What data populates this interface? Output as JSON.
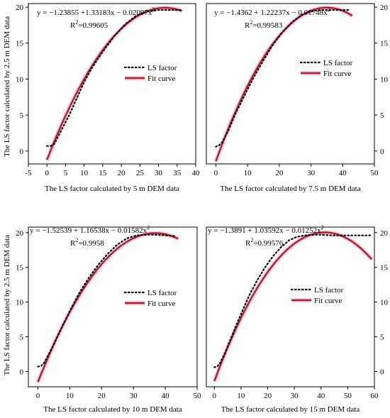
{
  "figure": {
    "ylabel_left_top": "The LS factor calculated by 2.5 m DEM data",
    "ylabel_left_bottom": "The LS factor calculated by 2.5 m DEM data"
  },
  "colors": {
    "fit": "#a0281e",
    "ls": "#000000",
    "halo": "#ff77e0"
  },
  "chart_data": [
    {
      "type": "line",
      "xlabel": "The LS factor calculated by 5 m DEM data",
      "xlim": [
        -5,
        40
      ],
      "ylim": [
        -1.8,
        20.5
      ],
      "xticks": [
        -5,
        0,
        5,
        10,
        15,
        20,
        25,
        30,
        35,
        40
      ],
      "yticks": [
        0,
        5,
        10,
        15,
        20
      ],
      "yaxis_side": "left",
      "equation": "y = −1.23855 +1.33183x − 0.02097x",
      "equation_exp": "2",
      "r2_prefix": "R",
      "r2_exp": "2",
      "r2_value": "=0.99605",
      "legend": [
        "LS factor",
        "Fit curve"
      ],
      "legend_position": "center-right",
      "series": [
        {
          "name": "LS factor",
          "style": "dotted",
          "x": [
            0,
            1,
            2,
            4,
            6,
            8,
            10,
            12,
            15,
            18,
            21,
            24,
            27,
            30,
            33,
            36
          ],
          "y": [
            0.7,
            0.7,
            1.0,
            3.0,
            5.0,
            7.3,
            9.6,
            11.5,
            13.8,
            15.9,
            17.6,
            18.8,
            19.4,
            19.6,
            19.6,
            19.6
          ]
        },
        {
          "name": "Fit curve",
          "style": "solid",
          "fit": [
            -1.23855,
            1.33183,
            -0.02097
          ],
          "x_range": [
            0,
            36.3
          ]
        }
      ]
    },
    {
      "type": "line",
      "xlabel": "The LS factor calculated by 7.5 m DEM data",
      "xlim": [
        -3,
        50
      ],
      "ylim": [
        -1.8,
        20.5
      ],
      "xticks": [
        0,
        10,
        20,
        30,
        40,
        50
      ],
      "yticks": [
        0,
        5,
        10,
        15,
        20
      ],
      "yaxis_side": "right",
      "equation": "y = −1.4362 + 1.22237x − 0.01748x",
      "equation_exp": "2",
      "r2_prefix": "R",
      "r2_exp": "2",
      "r2_value": "=0.99583",
      "legend": [
        "LS factor",
        "Fit curve"
      ],
      "legend_position": "center-right",
      "series": [
        {
          "name": "LS factor",
          "style": "dotted",
          "x": [
            0,
            1,
            2,
            4,
            6,
            9,
            12,
            15,
            18,
            21,
            24,
            27,
            30,
            33,
            36,
            39,
            42
          ],
          "y": [
            0.6,
            0.8,
            1.2,
            2.9,
            5.0,
            7.7,
            10.3,
            12.6,
            14.8,
            16.5,
            17.9,
            18.9,
            19.4,
            19.6,
            19.6,
            19.6,
            19.6
          ]
        },
        {
          "name": "Fit curve",
          "style": "solid",
          "fit": [
            -1.4362,
            1.22237,
            -0.01748
          ],
          "x_range": [
            0,
            43
          ]
        }
      ]
    },
    {
      "type": "line",
      "xlabel": "The LS factor calculated by 10 m DEM data",
      "xlim": [
        -3,
        50
      ],
      "ylim": [
        -2.2,
        20.8
      ],
      "xticks": [
        0,
        10,
        20,
        30,
        40,
        50
      ],
      "yticks": [
        0,
        5,
        10,
        15,
        20
      ],
      "yaxis_side": "left",
      "equation": "y = −1.52539 + 1.16538x − 0.01582x",
      "equation_exp": "2",
      "r2_prefix": "R",
      "r2_exp": "2",
      "r2_value": "=0.9958",
      "legend": [
        "LS factor",
        "Fit curve"
      ],
      "legend_position": "top-right",
      "series": [
        {
          "name": "LS factor",
          "style": "dotted",
          "x": [
            0,
            1,
            2,
            4,
            7,
            10,
            13,
            16,
            19,
            22,
            25,
            28,
            31,
            34,
            37,
            40,
            43
          ],
          "y": [
            0.7,
            0.8,
            1.3,
            3.0,
            5.9,
            8.7,
            11.3,
            13.5,
            15.4,
            17.0,
            18.3,
            19.2,
            19.6,
            19.7,
            19.7,
            19.6,
            19.5
          ]
        },
        {
          "name": "Fit curve",
          "style": "solid",
          "fit": [
            -1.52539,
            1.16538,
            -0.01582
          ],
          "x_range": [
            0,
            44
          ]
        }
      ]
    },
    {
      "type": "line",
      "xlabel": "The LS factor calculated by 15 m DEM data",
      "xlim": [
        -3,
        60
      ],
      "ylim": [
        -2.2,
        20.8
      ],
      "xticks": [
        0,
        10,
        20,
        30,
        40,
        50,
        60
      ],
      "yticks": [
        0,
        5,
        10,
        15,
        20
      ],
      "yaxis_side": "right",
      "equation": "y = −1.3891 + 1.03592x − 0.01252x",
      "equation_exp": "2",
      "r2_prefix": "R",
      "r2_exp": "2",
      "r2_value": "=0.99576",
      "legend": [
        "LS factor",
        "Fit curve"
      ],
      "legend_position": "center-right",
      "series": [
        {
          "name": "LS factor",
          "style": "dotted",
          "x": [
            0,
            1,
            2,
            4,
            7,
            10,
            13,
            16,
            19,
            22,
            25,
            28,
            31,
            34,
            37,
            40,
            44,
            48,
            52,
            56,
            59
          ],
          "y": [
            0.6,
            0.7,
            1.1,
            2.7,
            5.5,
            8.3,
            10.9,
            13.1,
            15.0,
            16.6,
            17.9,
            18.9,
            19.4,
            19.6,
            19.7,
            19.7,
            19.6,
            19.6,
            19.6,
            19.6,
            19.6
          ]
        },
        {
          "name": "Fit curve",
          "style": "solid",
          "fit": [
            -1.3891,
            1.03592,
            -0.01252
          ],
          "x_range": [
            0,
            59
          ]
        }
      ]
    }
  ]
}
